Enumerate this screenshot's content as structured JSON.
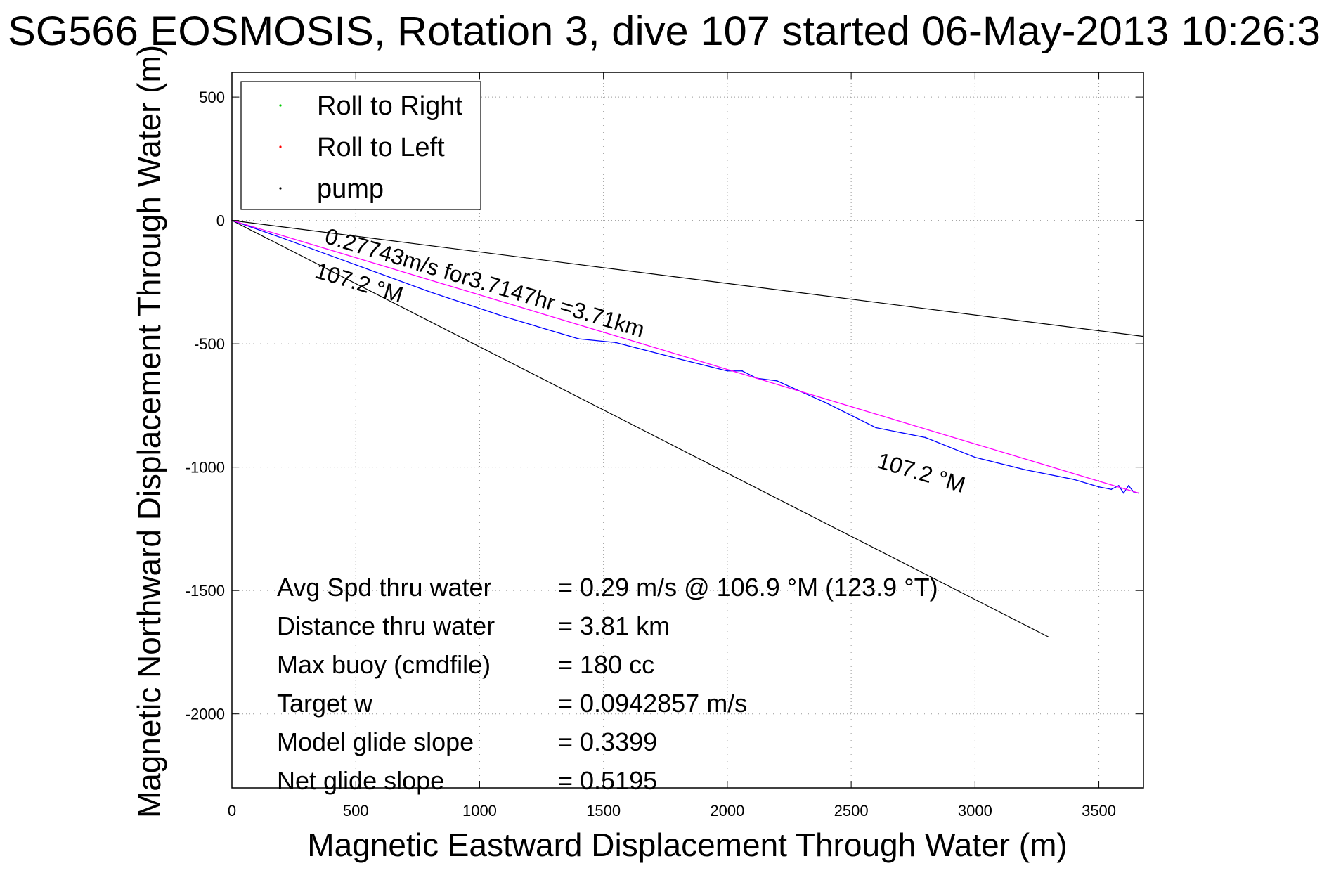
{
  "chart_data": {
    "type": "line",
    "title": "SG566 EOSMOSIS, Rotation 3, dive 107 started 06-May-2013 10:26:3",
    "xlabel": "Magnetic Eastward Displacement Through Water (m)",
    "ylabel": "Magnetic Northward Displacement Through Water (m)",
    "xlim": [
      0,
      3680
    ],
    "ylim": [
      -2300,
      600
    ],
    "xticks": [
      0,
      500,
      1000,
      1500,
      2000,
      2500,
      3000,
      3500
    ],
    "yticks": [
      500,
      0,
      -500,
      -1000,
      -1500,
      -2000
    ],
    "grid": true,
    "legend_position": "top-left",
    "legend": [
      {
        "label": "Roll to Right",
        "color": "#00cc00"
      },
      {
        "label": "Roll to Left",
        "color": "#ff0000"
      },
      {
        "label": "pump",
        "color": "#000000"
      }
    ],
    "series": [
      {
        "color": "#0000ff",
        "x": [
          0,
          200,
          500,
          800,
          1100,
          1400,
          1550,
          1800,
          2000,
          2060,
          2120,
          2200,
          2400,
          2600,
          2800,
          3000,
          3200,
          3400,
          3500,
          3550,
          3580,
          3600,
          3620,
          3640,
          3660
        ],
        "y": [
          0,
          -70,
          -180,
          -290,
          -390,
          -480,
          -495,
          -560,
          -610,
          -610,
          -640,
          -650,
          -740,
          -840,
          -880,
          -960,
          -1010,
          -1050,
          -1080,
          -1090,
          -1075,
          -1105,
          -1075,
          -1100,
          -1105
        ]
      },
      {
        "color": "#ff00ff",
        "x": [
          0,
          3660
        ],
        "y": [
          0,
          -1105
        ]
      }
    ],
    "reference_lines": [
      {
        "color": "#000000",
        "x": [
          0,
          3680
        ],
        "y": [
          0,
          -470
        ]
      },
      {
        "color": "#000000",
        "x": [
          0,
          3300
        ],
        "y": [
          0,
          -1690
        ]
      }
    ],
    "annotations": [
      {
        "text": "0.27743m/s for3.7147hr =3.71km",
        "x": 370,
        "y": -90
      },
      {
        "text": "107.2 °M",
        "x": 330,
        "y": -230
      },
      {
        "text": "107.2 °M",
        "x": 2600,
        "y": -1000
      }
    ],
    "stats": [
      {
        "label": "Avg Spd thru water",
        "value": "=  0.29 m/s @ 106.9 °M (123.9 °T)"
      },
      {
        "label": "Distance thru water",
        "value": "=  3.81 km"
      },
      {
        "label": "Max buoy (cmdfile)",
        "value": "= 180 cc"
      },
      {
        "label": "Target w",
        "value": "= 0.0942857 m/s"
      },
      {
        "label": "Model glide slope",
        "value": "= 0.3399"
      },
      {
        "label": "Net glide slope",
        "value": "= 0.5195"
      }
    ]
  }
}
